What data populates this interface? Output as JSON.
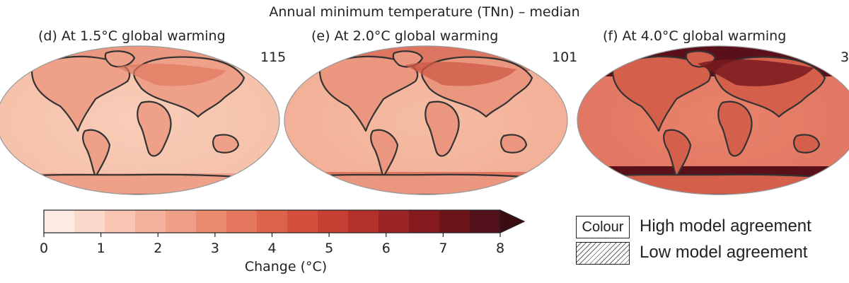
{
  "title": "Annual minimum temperature (TNn) – median",
  "panels": [
    {
      "label": "(d) At 1.5°C global warming",
      "count": "115",
      "level": 1
    },
    {
      "label": "(e) At 2.0°C global warming",
      "count": "101",
      "level": 2
    },
    {
      "label": "(f) At 4.0°C global warming",
      "count": "3",
      "level": 4
    }
  ],
  "colorbar": {
    "ticks": [
      "0",
      "1",
      "2",
      "3",
      "4",
      "5",
      "6",
      "7",
      "8"
    ],
    "label": "Change (°C)",
    "colors": [
      "#fdeae2",
      "#fad8ca",
      "#f7c5b2",
      "#f3b29c",
      "#ef9f86",
      "#ea8b70",
      "#e4775d",
      "#dd634b",
      "#d4503d",
      "#c53f33",
      "#b3302b",
      "#9c2425",
      "#851b1f",
      "#6b141a",
      "#51101a"
    ],
    "extend_color": "#3b0d12"
  },
  "legend": {
    "colour_box": "Colour",
    "high": "High model agreement",
    "low": "Low model agreement"
  }
}
